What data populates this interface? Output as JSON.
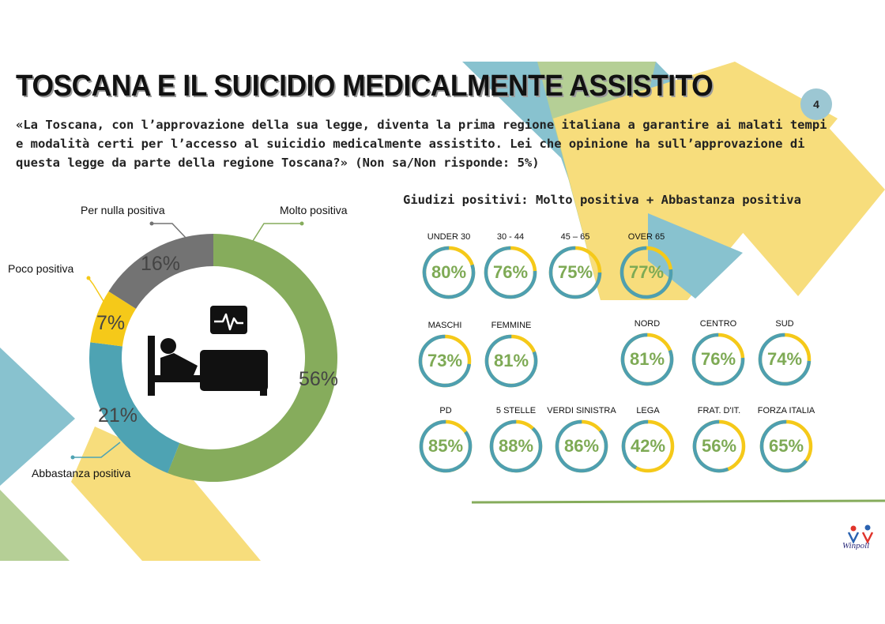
{
  "title": "TOSCANA E IL SUICIDIO MEDICALMENTE ASSISTITO",
  "page_number": "4",
  "question": {
    "text": "«La Toscana, con l’approvazione della sua legge, diventa la prima regione italiana a garantire ai malati tempi e modalità certi per l’accesso al suicidio medicalmente assistito. Lei che opinione ha sull’approvazione di questa legge da parte della regione Toscana?»",
    "note": "(Non sa/Non risponde: 5%)"
  },
  "colors": {
    "molto": "#86ac5c",
    "abbastanza": "#4ea3b3",
    "poco": "#f5c919",
    "nulla": "#737373",
    "gauge_track": "#4e9fb0",
    "gauge_arc": "#f5c919",
    "gauge_text": "#7eaa55",
    "deco_blue": "#88c2cf",
    "deco_yellow": "#f7dd7c",
    "deco_green": "#b5cf96"
  },
  "icons": [
    "bed-patient-icon",
    "heart-monitor-icon",
    "winpoll-logo"
  ],
  "chart_data": [
    {
      "type": "pie",
      "variant": "donut",
      "categories": [
        "Molto positiva",
        "Abbastanza positiva",
        "Poco positiva",
        "Per nulla positiva"
      ],
      "values": [
        56,
        21,
        7,
        16
      ],
      "labels": [
        "56%",
        "21%",
        "7%",
        "16%"
      ]
    },
    {
      "type": "pie",
      "variant": "gauges",
      "title": "Giudizi positivi: Molto positiva + Abbastanza positiva",
      "categories": [
        "UNDER 30",
        "30 - 44",
        "45 – 65",
        "OVER 65",
        "MASCHI",
        "FEMMINE",
        "NORD",
        "CENTRO",
        "SUD",
        "PD",
        "5 STELLE",
        "VERDI SINISTRA",
        "LEGA",
        "FRAT. D'IT.",
        "FORZA ITALIA"
      ],
      "values": [
        80,
        76,
        75,
        77,
        73,
        81,
        81,
        76,
        74,
        85,
        88,
        86,
        42,
        56,
        65
      ],
      "labels": [
        "80%",
        "76%",
        "75%",
        "77%",
        "73%",
        "81%",
        "81%",
        "76%",
        "74%",
        "85%",
        "88%",
        "86%",
        "42%",
        "56%",
        "65%"
      ]
    }
  ],
  "logo_text": "Winpoll"
}
